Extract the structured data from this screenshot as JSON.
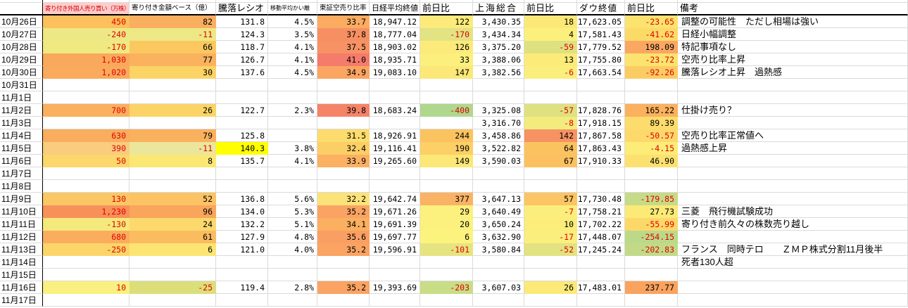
{
  "colors": {
    "negative_text": "#e00000",
    "header_c1_bg": "#ffcccc",
    "header_c1_text": "#d00000",
    "highlight_yellow": "#ffff00",
    "gridline": "#dadada",
    "scale_red": "#f8696b",
    "scale_yellow": "#ffeb84",
    "scale_green": "#63be7b"
  },
  "table": {
    "headers": {
      "date": "",
      "c1": "寄り付き外国人売り買い（万株）",
      "c2": "寄り付き金額ベース（億）",
      "c3": "騰落レシオ",
      "c4": "移動平均かい離",
      "c5": "東証空売り比率",
      "c6": "日経平均終値",
      "c7": "前日比",
      "c8": "上海総合",
      "c9": "前日比",
      "c10": "ダウ終値",
      "c11": "前日比",
      "c12": "備考"
    },
    "rows": [
      {
        "date": "10月26日",
        "cells": [
          [
            "450",
            "#FCC05C",
            1
          ],
          [
            "82",
            "#FAAE60"
          ],
          [
            "131.8"
          ],
          [
            "4.5%"
          ],
          [
            "33.7",
            "#FBAC60"
          ],
          [
            "18,947.12"
          ],
          [
            "122",
            "#FCEA7A"
          ],
          [
            "3,430.35"
          ],
          [
            "18",
            "#FCE876"
          ],
          [
            "17,623.05"
          ],
          [
            "-23.65",
            "#FCE36F",
            1
          ]
        ],
        "remark": "調整の可能性　ただし相場は強い"
      },
      {
        "date": "10月27日",
        "cells": [
          [
            "-240",
            "#EDE885",
            1
          ],
          [
            "-11",
            "#EDE885",
            1
          ],
          [
            "124.3"
          ],
          [
            "3.5%"
          ],
          [
            "37.8",
            "#F69063"
          ],
          [
            "18,777.04"
          ],
          [
            "-170",
            "#E2E383",
            1
          ],
          [
            "3,434.34"
          ],
          [
            "4",
            "#FCF07D"
          ],
          [
            "17,581.43"
          ],
          [
            "-41.62",
            "#FCDA68",
            1
          ]
        ],
        "remark": "日経小幅調整"
      },
      {
        "date": "10月28日",
        "cells": [
          [
            "-170",
            "#F0E881",
            1
          ],
          [
            "66",
            "#FBC860"
          ],
          [
            "118.7"
          ],
          [
            "4.1%"
          ],
          [
            "37.5",
            "#F79264"
          ],
          [
            "18,903.02"
          ],
          [
            "126",
            "#FCEA7A"
          ],
          [
            "3,375.20"
          ],
          [
            "-59",
            "#DEE180",
            1
          ],
          [
            "17,779.52"
          ],
          [
            "198.09",
            "#FAA761"
          ]
        ],
        "remark": "特記事項なし"
      },
      {
        "date": "10月29日",
        "cells": [
          [
            "1,030",
            "#F9A95C",
            1
          ],
          [
            "77",
            "#FAB25E"
          ],
          [
            "126.7"
          ],
          [
            "4.1%"
          ],
          [
            "41.0",
            "#F57B6B"
          ],
          [
            "18,935.71"
          ],
          [
            "33",
            "#FCEF7D"
          ],
          [
            "3,388.06"
          ],
          [
            "13",
            "#FCEB79"
          ],
          [
            "17,755.80"
          ],
          [
            "-23.72",
            "#FCE370",
            1
          ]
        ],
        "remark": "空売り比率上昇"
      },
      {
        "date": "10月30日",
        "cells": [
          [
            "1,020",
            "#F9AA5C",
            1
          ],
          [
            "30",
            "#FCD365"
          ],
          [
            "137.6"
          ],
          [
            "4.5%"
          ],
          [
            "34.9",
            "#FAA561"
          ],
          [
            "19,083.10"
          ],
          [
            "147",
            "#FCE878"
          ],
          [
            "3,382.56"
          ],
          [
            "-6",
            "#FAEF7D",
            1
          ],
          [
            "17,663.54"
          ],
          [
            "-92.26",
            "#FCCC64",
            1
          ]
        ],
        "remark": "騰落レシオ上昇　過熱感"
      },
      {
        "date": "10月31日",
        "cells": [],
        "remark": ""
      },
      {
        "date": "11月1日",
        "cells": [],
        "remark": ""
      },
      {
        "date": "11月2日",
        "cells": [
          [
            "700",
            "#FAB05E",
            1
          ],
          [
            "26",
            "#FCD466"
          ],
          [
            "122.7"
          ],
          [
            "2.3%"
          ],
          [
            "39.8",
            "#F58368"
          ],
          [
            "18,683.24"
          ],
          [
            "-400",
            "#AFD88E",
            1
          ],
          [
            "3,325.08"
          ],
          [
            "-57",
            "#DEE180",
            1
          ],
          [
            "17,828.76"
          ],
          [
            "165.22",
            "#FBB15E"
          ]
        ],
        "remark": "仕掛け売り？"
      },
      {
        "date": "11月3日",
        "cells": [
          null,
          null,
          null,
          null,
          null,
          null,
          null,
          [
            "3,316.70"
          ],
          [
            "-8",
            "#F3EB7D",
            1
          ],
          [
            "17,918.15"
          ],
          [
            "89.39",
            "#FCDC6C"
          ]
        ],
        "remark": ""
      },
      {
        "date": "11月4日",
        "cells": [
          [
            "630",
            "#F9AD5D",
            1
          ],
          [
            "79",
            "#FAB15D"
          ],
          [
            "125.8"
          ],
          null,
          [
            "31.5",
            "#FCDC6C"
          ],
          [
            "18,926.91"
          ],
          [
            "244",
            "#FBC35F"
          ],
          [
            "3,458.86"
          ],
          [
            "142",
            "#F69263"
          ],
          [
            "17,867.58"
          ],
          [
            "-50.57",
            "#FCD96A",
            1
          ]
        ],
        "remark": "空売り比率正常値へ"
      },
      {
        "date": "11月5日",
        "cells": [
          [
            "390",
            "#FACC7E",
            1
          ],
          [
            "-11",
            "#EBE69B",
            1
          ],
          [
            "140.3",
            "#FFFF00"
          ],
          [
            "3.8%"
          ],
          [
            "32.4",
            "#FCCE66"
          ],
          [
            "19,116.41"
          ],
          [
            "190",
            "#FCCF67"
          ],
          [
            "3,522.82"
          ],
          [
            "64",
            "#FBC35F"
          ],
          [
            "17,863.43"
          ],
          [
            "-4.15",
            "#FCEC78",
            1
          ]
        ],
        "remark": "過熱感上昇"
      },
      {
        "date": "11月6日",
        "cells": [
          [
            "50",
            "#FCD76B",
            1
          ],
          [
            "8",
            "#FBE774"
          ],
          [
            "135.7"
          ],
          [
            "4.1%"
          ],
          [
            "33.9",
            "#FBB062"
          ],
          [
            "19,265.60"
          ],
          [
            "149",
            "#FCE876"
          ],
          [
            "3,590.03"
          ],
          [
            "67",
            "#FBC160"
          ],
          [
            "17,910.33"
          ],
          [
            "46.90",
            "#FCE170"
          ]
        ],
        "remark": ""
      },
      {
        "date": "11月7日",
        "cells": [],
        "remark": ""
      },
      {
        "date": "11月8日",
        "cells": [],
        "remark": ""
      },
      {
        "date": "11月9日",
        "cells": [
          [
            "130",
            "#FBC765",
            1
          ],
          [
            "52",
            "#FBC364"
          ],
          [
            "136.8"
          ],
          [
            "5.6%"
          ],
          [
            "32.2",
            "#FBE37A"
          ],
          [
            "19,642.74"
          ],
          [
            "377",
            "#FAB364"
          ],
          [
            "3,647.13"
          ],
          [
            "57",
            "#FBC464"
          ],
          [
            "17,730.48"
          ],
          [
            "-179.85",
            "#C6DB87",
            1
          ]
        ],
        "remark": ""
      },
      {
        "date": "11月10日",
        "cells": [
          [
            "1,230",
            "#F89159",
            1
          ],
          [
            "96",
            "#F9A55C"
          ],
          [
            "134.0"
          ],
          [
            "5.3%"
          ],
          [
            "35.2",
            "#FAA362"
          ],
          [
            "19,671.26"
          ],
          [
            "29",
            "#FCF07E"
          ],
          [
            "3,640.49"
          ],
          [
            "-7",
            "#FCEE7C",
            1
          ],
          [
            "17,758.21"
          ],
          [
            "27.73",
            "#FCEA77"
          ]
        ],
        "remark": "三菱　飛行機試験成功"
      },
      {
        "date": "11月11日",
        "cells": [
          [
            "-130",
            "#F3E97C",
            1
          ],
          [
            "24",
            "#FCD96C"
          ],
          [
            "132.2"
          ],
          [
            "5.1%"
          ],
          [
            "34.1",
            "#FBAF60"
          ],
          [
            "19,691.39"
          ],
          [
            "20",
            "#FCF17E"
          ],
          [
            "3,650.24"
          ],
          [
            "10",
            "#FCEC7A"
          ],
          [
            "17,702.22"
          ],
          [
            "-55.99",
            "#FCD869",
            1
          ]
        ],
        "remark": "寄り付き前久々の株数売り越し"
      },
      {
        "date": "11月12日",
        "cells": [
          [
            "680",
            "#FAAE5D",
            1
          ],
          [
            "61",
            "#FBBC60"
          ],
          [
            "127.9"
          ],
          [
            "4.8%"
          ],
          [
            "35.6",
            "#FA9F63"
          ],
          [
            "19,697.77"
          ],
          [
            "6",
            "#FCF37F"
          ],
          [
            "3,632.90"
          ],
          [
            "-17",
            "#FAEE7D",
            1
          ],
          [
            "17,448.07"
          ],
          [
            "-254.15",
            "#BCD98A",
            1
          ]
        ],
        "remark": ""
      },
      {
        "date": "11月13日",
        "cells": [
          [
            "-250",
            "#FCD56A",
            1
          ],
          [
            "6",
            "#FCE573"
          ],
          [
            "121.0"
          ],
          [
            "4.0%"
          ],
          [
            "35.2",
            "#FAA362"
          ],
          [
            "19,596.91"
          ],
          [
            "-101",
            "#E6E481",
            1
          ],
          [
            "3,580.84"
          ],
          [
            "-52",
            "#E2E281",
            1
          ],
          [
            "17,245.24"
          ],
          [
            "-202.83",
            "#C2DA88",
            1
          ]
        ],
        "remark": "フランス　同時テロ　　ＺＭＰ株式分割11月後半"
      },
      {
        "date": "11月14日",
        "cells": [],
        "remark": "死者130人超"
      },
      {
        "date": "11月15日",
        "cells": [],
        "remark": ""
      },
      {
        "date": "11月16日",
        "cells": [
          [
            "10",
            "#FAF07F",
            1
          ],
          [
            "-25",
            "#DCDF79",
            1
          ],
          [
            "119.4"
          ],
          [
            "2.8%"
          ],
          [
            "35.2",
            "#FAA362"
          ],
          [
            "19,393.69"
          ],
          [
            "-203",
            "#C9DC86",
            1
          ],
          [
            "3,607.03"
          ],
          [
            "26",
            "#FCE977"
          ],
          [
            "17,483.01"
          ],
          [
            "237.77",
            "#FAA35F"
          ]
        ],
        "remark": ""
      },
      {
        "date": "11月17日",
        "cells": [],
        "remark": ""
      }
    ]
  }
}
